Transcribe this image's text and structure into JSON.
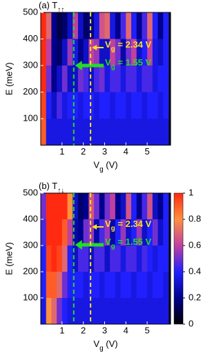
{
  "chart_data": [
    {
      "type": "heatmap",
      "title": [
        "(a) T",
        "↑↑"
      ],
      "x_label": [
        "V",
        "g",
        " (V)"
      ],
      "y_label": "E (meV)",
      "x_edges": [
        0,
        0.25,
        0.5,
        0.75,
        1,
        1.25,
        1.5,
        1.75,
        2,
        2.25,
        2.5,
        2.75,
        3,
        3.25,
        3.5,
        3.75,
        4,
        4.25,
        4.5,
        4.75,
        5,
        5.25,
        5.5,
        5.75,
        6
      ],
      "y_edges": [
        500,
        400,
        300,
        200,
        100,
        0
      ],
      "z": [
        [
          1,
          0.7,
          0.2,
          0.1,
          0.15,
          0.3,
          0.6,
          0.3,
          0.15,
          0.2,
          0.35,
          0.65,
          0.7,
          0.35,
          0.2,
          0.45,
          0.7,
          0.4,
          0.2,
          0.45,
          0.7,
          0.4,
          0.2,
          0.4
        ],
        [
          1,
          0.6,
          0.2,
          0.15,
          0.3,
          0.55,
          0.35,
          0.2,
          0.3,
          0.6,
          0.55,
          0.3,
          0.3,
          0.6,
          0.5,
          0.25,
          0.5,
          0.6,
          0.3,
          0.4,
          0.6,
          0.35,
          0.3,
          0.4
        ],
        [
          1,
          0.5,
          0.2,
          0.3,
          0.5,
          0.3,
          0.3,
          0.5,
          0.45,
          0.3,
          0.45,
          0.5,
          0.35,
          0.45,
          0.45,
          0.35,
          0.45,
          0.45,
          0.35,
          0.45,
          0.45,
          0.35,
          0.4,
          0.4
        ],
        [
          0.95,
          0.4,
          0.3,
          0.45,
          0.35,
          0.4,
          0.4,
          0.35,
          0.4,
          0.4,
          0.35,
          0.4,
          0.4,
          0.35,
          0.4,
          0.4,
          0.35,
          0.4,
          0.4,
          0.35,
          0.4,
          0.4,
          0.35,
          0.4
        ],
        [
          0.9,
          0.35,
          0.35,
          0.35,
          0.35,
          0.35,
          0.35,
          0.35,
          0.35,
          0.35,
          0.35,
          0.35,
          0.35,
          0.35,
          0.35,
          0.35,
          0.35,
          0.35,
          0.35,
          0.35,
          0.35,
          0.35,
          0.35,
          0.35
        ]
      ],
      "colormap": [
        "#000000",
        "#00008c",
        "#2020ff",
        "#c040a0",
        "#ff9040",
        "#ff2a10"
      ],
      "xlim": [
        0,
        6.1
      ],
      "ylim": [
        0,
        500
      ],
      "xticks": [
        1,
        2,
        3,
        4,
        5
      ],
      "yticks": [
        100,
        200,
        300,
        400,
        500
      ],
      "vlines": [
        {
          "x": 1.55,
          "color": "#22dd22",
          "label": [
            "V",
            "g",
            " = 1.55 V"
          ]
        },
        {
          "x": 2.34,
          "color": "#ffe020",
          "label": [
            "V",
            "g",
            " = 2.34 V"
          ]
        }
      ]
    },
    {
      "type": "heatmap",
      "title": [
        "(b) T",
        "↑↓"
      ],
      "x_label": [
        "V",
        "g",
        " (V)"
      ],
      "y_label": "E (meV)",
      "x_edges": [
        0,
        0.25,
        0.5,
        0.75,
        1,
        1.25,
        1.5,
        1.75,
        2,
        2.25,
        2.5,
        2.75,
        3,
        3.25,
        3.5,
        3.75,
        4,
        4.25,
        4.5,
        4.75,
        5,
        5.25,
        5.5,
        5.75,
        6
      ],
      "y_edges": [
        500,
        400,
        300,
        200,
        100,
        0
      ],
      "z": [
        [
          0.5,
          1,
          1,
          1,
          1,
          0.8,
          0.3,
          0.15,
          0.2,
          0.65,
          0.5,
          0.2,
          0.5,
          0.6,
          0.2,
          0.3,
          0.65,
          0.4,
          0.2,
          0.45,
          0.65,
          0.3,
          0.2,
          0.4
        ],
        [
          0.45,
          1,
          1,
          1,
          0.9,
          0.6,
          0.25,
          0.2,
          0.5,
          0.55,
          0.25,
          0.45,
          0.55,
          0.25,
          0.4,
          0.55,
          0.3,
          0.4,
          0.55,
          0.3,
          0.4,
          0.5,
          0.3,
          0.4
        ],
        [
          0.4,
          0.95,
          1,
          0.95,
          0.7,
          0.4,
          0.3,
          0.45,
          0.45,
          0.3,
          0.45,
          0.45,
          0.3,
          0.45,
          0.45,
          0.35,
          0.45,
          0.45,
          0.35,
          0.45,
          0.4,
          0.35,
          0.4,
          0.4
        ],
        [
          0.4,
          0.9,
          0.9,
          0.7,
          0.5,
          0.4,
          0.4,
          0.4,
          0.35,
          0.4,
          0.4,
          0.35,
          0.4,
          0.4,
          0.35,
          0.4,
          0.4,
          0.35,
          0.4,
          0.4,
          0.35,
          0.4,
          0.4,
          0.35
        ],
        [
          0.35,
          0.8,
          0.7,
          0.5,
          0.4,
          0.35,
          0.35,
          0.35,
          0.35,
          0.35,
          0.35,
          0.35,
          0.35,
          0.35,
          0.35,
          0.35,
          0.35,
          0.35,
          0.35,
          0.35,
          0.35,
          0.35,
          0.35,
          0.35
        ]
      ],
      "colormap": [
        "#000000",
        "#00008c",
        "#2020ff",
        "#c040a0",
        "#ff9040",
        "#ff2a10"
      ],
      "xlim": [
        0,
        6.1
      ],
      "ylim": [
        0,
        500
      ],
      "xticks": [
        1,
        2,
        3,
        4,
        5
      ],
      "yticks": [
        100,
        200,
        300,
        400,
        500
      ],
      "vlines": [
        {
          "x": 1.55,
          "color": "#22dd22",
          "label": [
            "V",
            "g",
            " = 1.55 V"
          ]
        },
        {
          "x": 2.34,
          "color": "#ffe020",
          "label": [
            "V",
            "g",
            " = 2.34 V"
          ]
        }
      ],
      "colorbar": {
        "lim": [
          0,
          1
        ],
        "ticks": [
          0,
          0.2,
          0.4,
          0.6,
          0.8,
          1
        ]
      }
    }
  ]
}
